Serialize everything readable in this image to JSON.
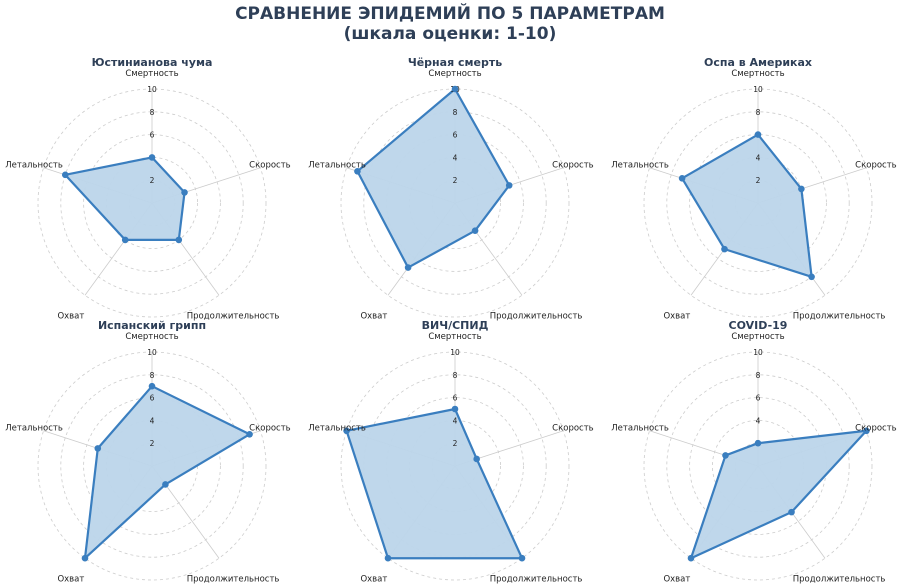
{
  "title": "СРАВНЕНИЕ ЭПИДЕМИЙ ПО 5 ПАРАМЕТРАМ",
  "subtitle": "(шкала оценки: 1-10)",
  "colors": {
    "line": "#3a7ebf",
    "fill": "#bcd5ea",
    "grid": "#cccccc",
    "title": "#2e3f57",
    "text": "#222222"
  },
  "chart_data": [
    {
      "type": "radar",
      "title": "Юстинианова чума",
      "axes": [
        "Смертность",
        "Скорость",
        "Продолжительность",
        "Охват",
        "Летальность"
      ],
      "values": [
        4,
        3,
        4,
        4,
        8
      ],
      "rlim": [
        0,
        10
      ],
      "ticks": [
        "2",
        "4",
        "6",
        "8",
        "10"
      ]
    },
    {
      "type": "radar",
      "title": "Чёрная смерть",
      "axes": [
        "Смертность",
        "Скорость",
        "Продолжительность",
        "Охват",
        "Летальность"
      ],
      "values": [
        10,
        5,
        3,
        7,
        9
      ],
      "rlim": [
        0,
        10
      ],
      "ticks": [
        "2",
        "4",
        "6",
        "8",
        "10"
      ]
    },
    {
      "type": "radar",
      "title": "Оспа в Америках",
      "axes": [
        "Смертность",
        "Скорость",
        "Продолжительность",
        "Охват",
        "Летальность"
      ],
      "values": [
        6,
        4,
        8,
        5,
        7
      ],
      "rlim": [
        0,
        10
      ],
      "ticks": [
        "2",
        "4",
        "6",
        "8",
        "10"
      ]
    },
    {
      "type": "radar",
      "title": "Испанский грипп",
      "axes": [
        "Смертность",
        "Скорость",
        "Продолжительность",
        "Охват",
        "Летальность"
      ],
      "values": [
        7,
        9,
        2,
        10,
        5
      ],
      "rlim": [
        0,
        10
      ],
      "ticks": [
        "2",
        "4",
        "6",
        "8",
        "10"
      ]
    },
    {
      "type": "radar",
      "title": "ВИЧ/СПИД",
      "axes": [
        "Смертность",
        "Скорость",
        "Продолжительность",
        "Охват",
        "Летальность"
      ],
      "values": [
        5,
        2,
        10,
        10,
        10
      ],
      "rlim": [
        0,
        10
      ],
      "ticks": [
        "2",
        "4",
        "6",
        "8",
        "10"
      ]
    },
    {
      "type": "radar",
      "title": "COVID-19",
      "axes": [
        "Смертность",
        "Скорость",
        "Продолжительность",
        "Охват",
        "Летальность"
      ],
      "values": [
        2,
        10,
        5,
        10,
        3
      ],
      "rlim": [
        0,
        10
      ],
      "ticks": [
        "2",
        "4",
        "6",
        "8",
        "10"
      ]
    }
  ]
}
